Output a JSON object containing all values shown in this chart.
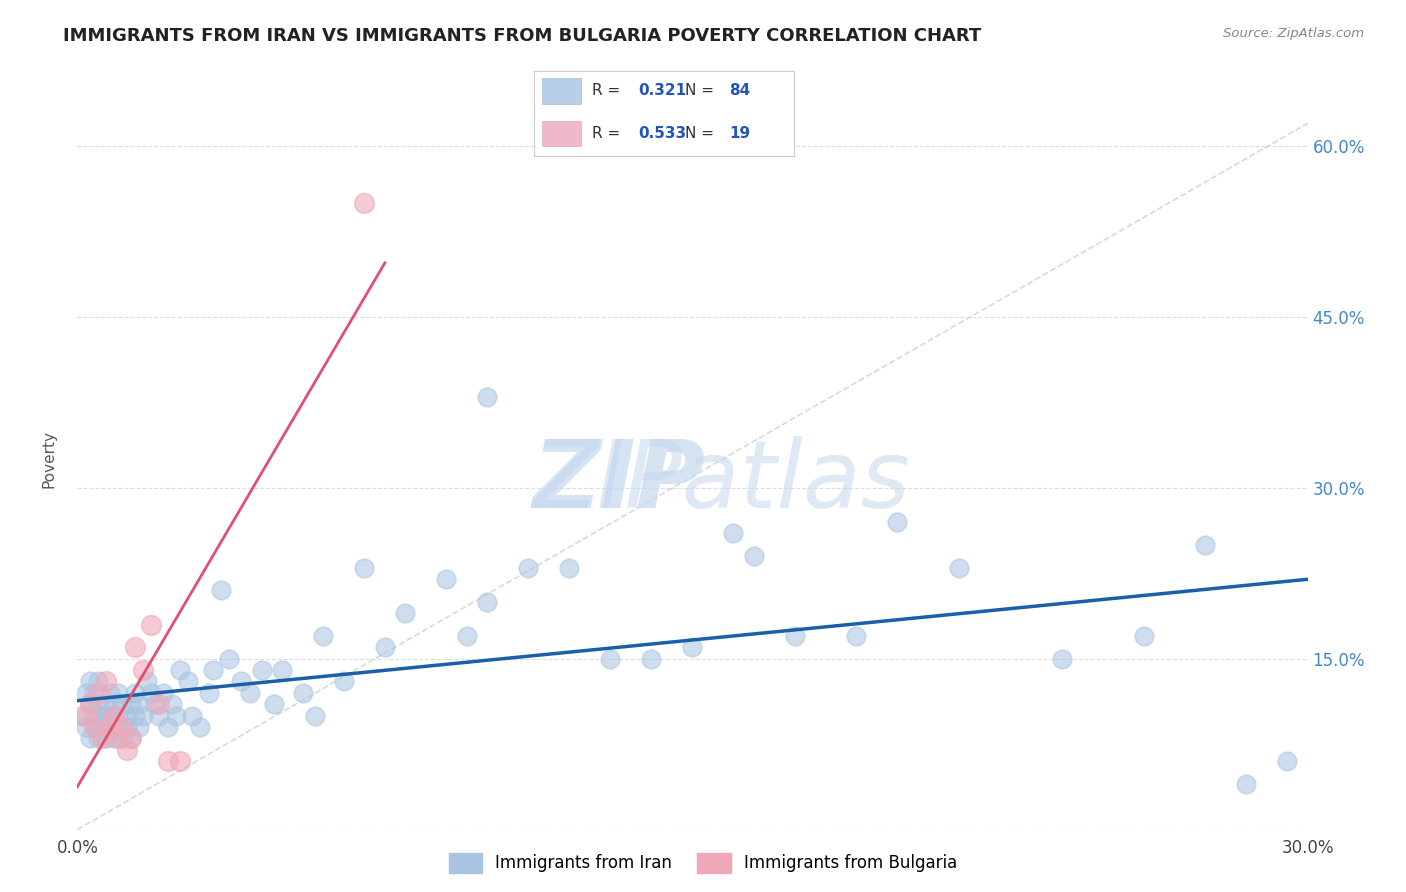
{
  "title": "IMMIGRANTS FROM IRAN VS IMMIGRANTS FROM BULGARIA POVERTY CORRELATION CHART",
  "source": "Source: ZipAtlas.com",
  "ylabel": "Poverty",
  "xlim": [
    0.0,
    0.3
  ],
  "ylim": [
    0.0,
    0.65
  ],
  "iran_R": 0.321,
  "iran_N": 84,
  "bulgaria_R": 0.533,
  "bulgaria_N": 19,
  "iran_color": "#a8c4e0",
  "bulgaria_color": "#f0a8b8",
  "iran_line_color": "#1a5fa8",
  "bulgaria_line_color": "#e05070",
  "iran_scatter_x": [
    0.001,
    0.002,
    0.002,
    0.003,
    0.003,
    0.003,
    0.004,
    0.004,
    0.004,
    0.005,
    0.005,
    0.005,
    0.006,
    0.006,
    0.007,
    0.007,
    0.007,
    0.008,
    0.008,
    0.008,
    0.009,
    0.009,
    0.01,
    0.01,
    0.01,
    0.011,
    0.011,
    0.012,
    0.012,
    0.013,
    0.013,
    0.014,
    0.014,
    0.015,
    0.015,
    0.016,
    0.017,
    0.018,
    0.019,
    0.02,
    0.021,
    0.022,
    0.023,
    0.024,
    0.025,
    0.027,
    0.028,
    0.03,
    0.032,
    0.033,
    0.035,
    0.037,
    0.04,
    0.042,
    0.045,
    0.048,
    0.05,
    0.055,
    0.058,
    0.06,
    0.065,
    0.07,
    0.075,
    0.08,
    0.09,
    0.095,
    0.1,
    0.11,
    0.12,
    0.13,
    0.14,
    0.15,
    0.16,
    0.175,
    0.19,
    0.2,
    0.215,
    0.24,
    0.26,
    0.275,
    0.285,
    0.295,
    0.1,
    0.165
  ],
  "iran_scatter_y": [
    0.1,
    0.12,
    0.09,
    0.11,
    0.13,
    0.08,
    0.1,
    0.12,
    0.09,
    0.11,
    0.08,
    0.13,
    0.1,
    0.09,
    0.11,
    0.08,
    0.1,
    0.12,
    0.09,
    0.1,
    0.11,
    0.08,
    0.1,
    0.09,
    0.12,
    0.11,
    0.08,
    0.1,
    0.09,
    0.11,
    0.08,
    0.1,
    0.12,
    0.09,
    0.11,
    0.1,
    0.13,
    0.12,
    0.11,
    0.1,
    0.12,
    0.09,
    0.11,
    0.1,
    0.14,
    0.13,
    0.1,
    0.09,
    0.12,
    0.14,
    0.21,
    0.15,
    0.13,
    0.12,
    0.14,
    0.11,
    0.14,
    0.12,
    0.1,
    0.17,
    0.13,
    0.23,
    0.16,
    0.19,
    0.22,
    0.17,
    0.2,
    0.23,
    0.23,
    0.15,
    0.15,
    0.16,
    0.26,
    0.17,
    0.17,
    0.27,
    0.23,
    0.15,
    0.17,
    0.25,
    0.04,
    0.06,
    0.38,
    0.24
  ],
  "bulgaria_scatter_x": [
    0.002,
    0.003,
    0.004,
    0.005,
    0.006,
    0.007,
    0.008,
    0.009,
    0.01,
    0.011,
    0.012,
    0.013,
    0.014,
    0.016,
    0.018,
    0.02,
    0.022,
    0.025,
    0.07
  ],
  "bulgaria_scatter_y": [
    0.1,
    0.11,
    0.09,
    0.12,
    0.08,
    0.13,
    0.09,
    0.1,
    0.08,
    0.09,
    0.07,
    0.08,
    0.16,
    0.14,
    0.18,
    0.11,
    0.06,
    0.06,
    0.55
  ]
}
